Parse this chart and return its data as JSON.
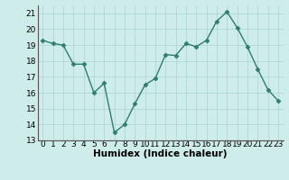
{
  "x": [
    0,
    1,
    2,
    3,
    4,
    5,
    6,
    7,
    8,
    9,
    10,
    11,
    12,
    13,
    14,
    15,
    16,
    17,
    18,
    19,
    20,
    21,
    22,
    23
  ],
  "y": [
    19.3,
    19.1,
    19.0,
    17.8,
    17.8,
    16.0,
    16.6,
    13.5,
    14.0,
    15.3,
    16.5,
    16.9,
    18.4,
    18.35,
    19.1,
    18.9,
    19.3,
    20.5,
    21.1,
    20.1,
    18.9,
    17.5,
    16.2,
    15.5
  ],
  "line_color": "#2e7d6e",
  "marker": "D",
  "markersize": 2.5,
  "linewidth": 1.0,
  "bg_color": "#ceecea",
  "grid_color": "#b0d8d4",
  "xlabel": "Humidex (Indice chaleur)",
  "xlabel_fontsize": 7.5,
  "ylim": [
    13,
    21.5
  ],
  "yticks": [
    13,
    14,
    15,
    16,
    17,
    18,
    19,
    20,
    21
  ],
  "xticks": [
    0,
    1,
    2,
    3,
    4,
    5,
    6,
    7,
    8,
    9,
    10,
    11,
    12,
    13,
    14,
    15,
    16,
    17,
    18,
    19,
    20,
    21,
    22,
    23
  ],
  "tick_fontsize": 6.5
}
